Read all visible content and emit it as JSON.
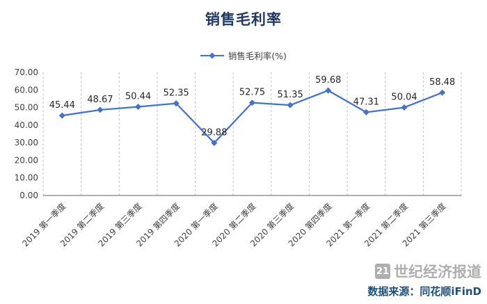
{
  "title": "销售毛利率",
  "legend": {
    "label": "销售毛利率(%)"
  },
  "source": "数据来源：同花顺iFinD",
  "watermark": {
    "logo": "21",
    "text": "世纪经济报道"
  },
  "colors": {
    "line": "#4472C4",
    "title": "#1F3864",
    "source": "#1F4E79",
    "grid": "#BFBFBF",
    "axis": "#7F7F7F",
    "tick": "#404040",
    "watermark": "#ABABAB"
  },
  "chart_data": {
    "type": "line",
    "title": "销售毛利率",
    "categories": [
      "2019 第一季度",
      "2019 第二季度",
      "2019 第三季度",
      "2019 第四季度",
      "2020 第一季度",
      "2020 第二季度",
      "2020 第三季度",
      "2020 第四季度",
      "2021 第一季度",
      "2021 第二季度",
      "2021 第三季度"
    ],
    "series": [
      {
        "name": "销售毛利率(%)",
        "values": [
          45.44,
          48.67,
          50.44,
          52.35,
          29.88,
          52.75,
          51.35,
          59.68,
          47.31,
          50.04,
          58.48
        ]
      }
    ],
    "xlabel": "",
    "ylabel": "",
    "ylim": [
      0,
      70
    ],
    "ytick_step": 10,
    "ytick_format": "2-decimals",
    "grid": "vertical-dashed",
    "legend_position": "top",
    "marker": "diamond",
    "data_labels": true
  }
}
